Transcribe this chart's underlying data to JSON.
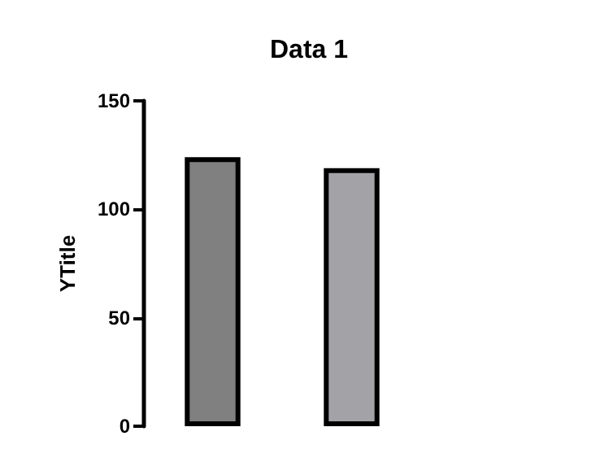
{
  "chart_data": {
    "type": "bar",
    "title": "Data 1",
    "ylabel": "YTitle",
    "categories": [
      null,
      null
    ],
    "values": [
      124,
      119
    ],
    "colors": [
      "#808080",
      "#a3a2a7"
    ],
    "ylim": [
      0,
      150
    ],
    "yticks": [
      0,
      50,
      100,
      150
    ],
    "grid": false
  }
}
